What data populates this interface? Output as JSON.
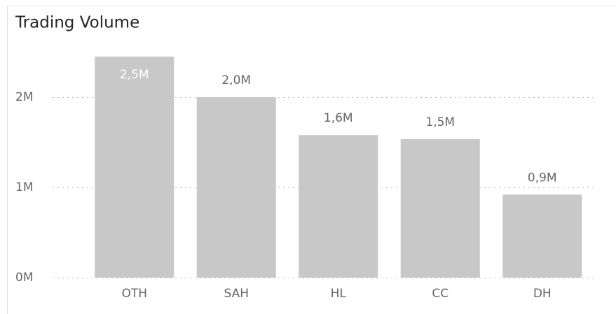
{
  "chart_data": {
    "type": "bar",
    "title": "Trading Volume",
    "categories": [
      "OTH",
      "SAH",
      "HL",
      "CC",
      "DH"
    ],
    "values": [
      2.45,
      2.0,
      1.58,
      1.535,
      0.92
    ],
    "value_labels": [
      "2,5M",
      "2,0M",
      "1,6M",
      "1,5M",
      "0,9M"
    ],
    "color": "#c8c8c8",
    "ylim": [
      0,
      2.5
    ],
    "yticks": [
      {
        "value": 0,
        "label": "0M"
      },
      {
        "value": 1,
        "label": "1M"
      },
      {
        "value": 2,
        "label": "2M"
      }
    ],
    "grid": true
  }
}
